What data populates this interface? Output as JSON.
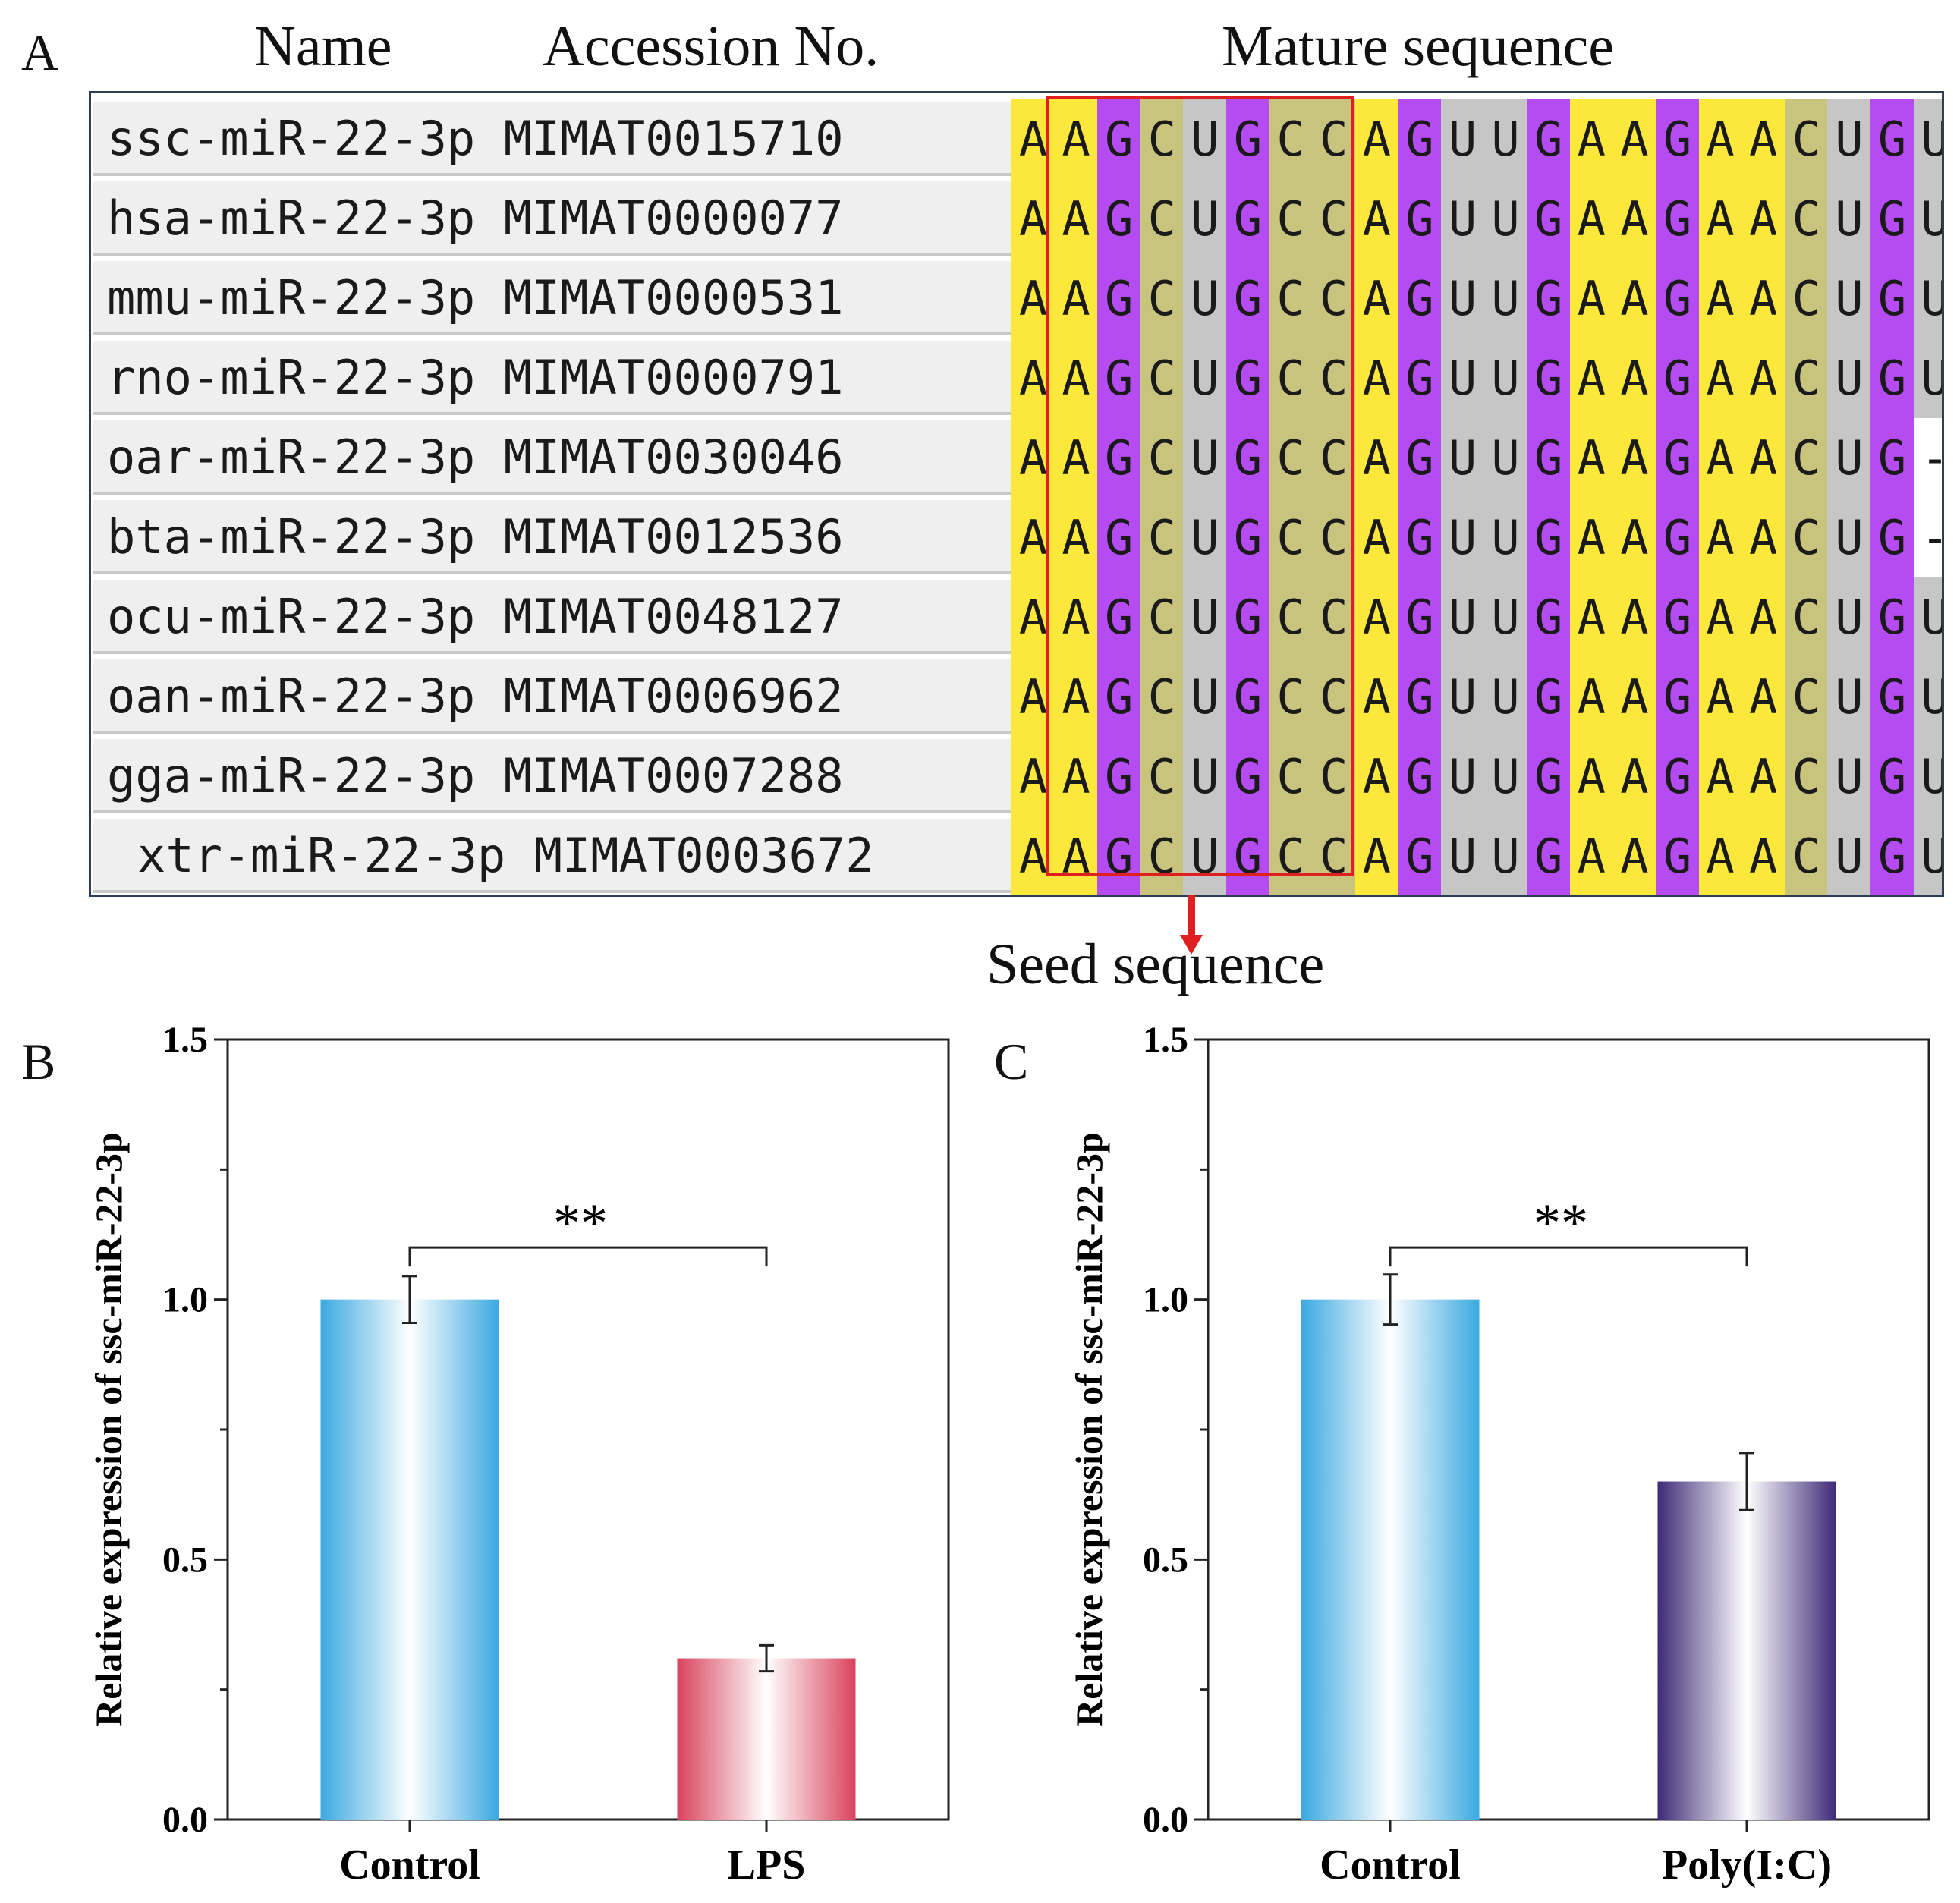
{
  "panels": {
    "a": "A",
    "b": "B",
    "c": "C"
  },
  "alignment": {
    "headers": {
      "name": "Name",
      "accession": "Accession No.",
      "mature": "Mature sequence"
    },
    "seed_label": "Seed sequence",
    "colors": {
      "A": "#fbe83a",
      "G": "#b44cf2",
      "C": "#c8c47e",
      "U": "#c6c6c6",
      "gap": "#ffffff",
      "seed_box": "#e02020"
    },
    "rows": [
      {
        "name": "ssc-miR-22-3p",
        "accession": "MIMAT0015710",
        "sequence": "AAGCUGCCAGUUGAAGAACUGU"
      },
      {
        "name": "hsa-miR-22-3p",
        "accession": "MIMAT0000077",
        "sequence": "AAGCUGCCAGUUGAAGAACUGU"
      },
      {
        "name": "mmu-miR-22-3p",
        "accession": "MIMAT0000531",
        "sequence": "AAGCUGCCAGUUGAAGAACUGU"
      },
      {
        "name": "rno-miR-22-3p",
        "accession": "MIMAT0000791",
        "sequence": "AAGCUGCCAGUUGAAGAACUGU"
      },
      {
        "name": "oar-miR-22-3p",
        "accession": "MIMAT0030046",
        "sequence": "AAGCUGCCAGUUGAAGAACUG-"
      },
      {
        "name": "bta-miR-22-3p",
        "accession": "MIMAT0012536",
        "sequence": "AAGCUGCCAGUUGAAGAACUG-"
      },
      {
        "name": "ocu-miR-22-3p",
        "accession": "MIMAT0048127",
        "sequence": "AAGCUGCCAGUUGAAGAACUGU"
      },
      {
        "name": "oan-miR-22-3p",
        "accession": "MIMAT0006962",
        "sequence": "AAGCUGCCAGUUGAAGAACUGU"
      },
      {
        "name": "gga-miR-22-3p",
        "accession": "MIMAT0007288",
        "sequence": "AAGCUGCCAGUUGAAGAACUGU"
      },
      {
        "name": "xtr-miR-22-3p",
        "accession": "MIMAT0003672",
        "sequence": "AAGCUGCCAGUUGAAGAACUGU"
      }
    ]
  },
  "chart_data": [
    {
      "type": "bar",
      "panel": "B",
      "categories": [
        "Control",
        "LPS"
      ],
      "values": [
        1.0,
        0.31
      ],
      "errors": [
        0.045,
        0.025
      ],
      "ylabel": "Relative expression of ssc-miR-22-3p",
      "ylim": [
        0.0,
        1.5
      ],
      "yticks": [
        "0.0",
        "0.5",
        "1.0",
        "1.5"
      ],
      "significance": "**",
      "colors": [
        "#3aa8e0",
        "#d9435c"
      ]
    },
    {
      "type": "bar",
      "panel": "C",
      "categories": [
        "Control",
        "Poly(I:C)"
      ],
      "values": [
        1.0,
        0.65
      ],
      "errors": [
        0.048,
        0.055
      ],
      "ylabel": "Relative expression of ssc-miR-22-3p",
      "ylim": [
        0.0,
        1.5
      ],
      "yticks": [
        "0.0",
        "0.5",
        "1.0",
        "1.5"
      ],
      "significance": "**",
      "colors": [
        "#3aa8e0",
        "#3f2a78"
      ]
    }
  ]
}
